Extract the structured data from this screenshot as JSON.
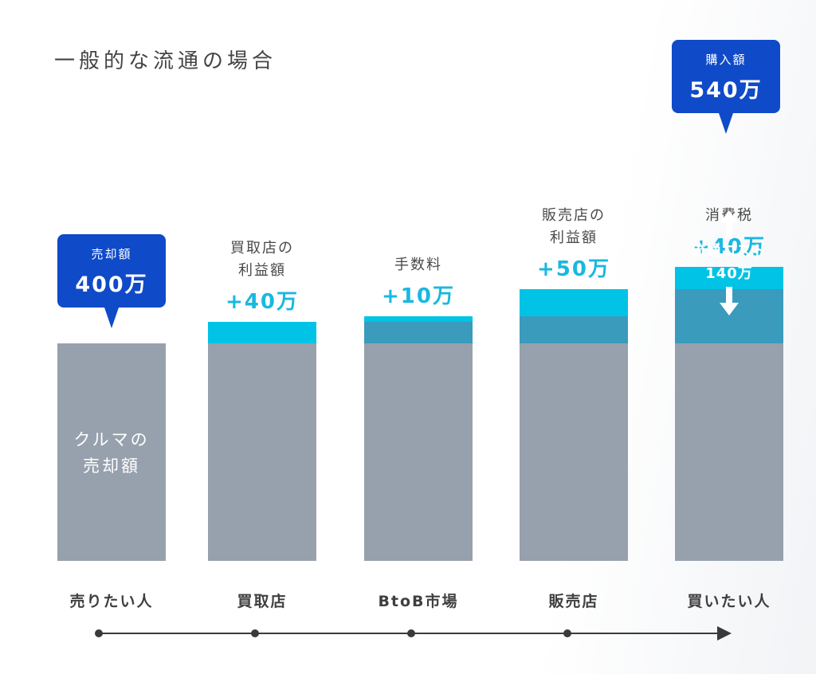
{
  "title": "一般的な流通の場合",
  "colors": {
    "base": "#97a1ad",
    "previous_additions": "#3a9bbc",
    "new_addition": "#00c3e6",
    "callout": "#0f4ac8",
    "addition_text": "#19b8e0"
  },
  "chart_data": {
    "type": "bar",
    "stacked": true,
    "categories": [
      "売りたい人",
      "買取店",
      "BtoB市場",
      "販売店",
      "買いたい人"
    ],
    "ylim": [
      0,
      540
    ],
    "unit": "万",
    "base_value": 400,
    "increments": [
      0,
      40,
      10,
      50,
      40
    ],
    "cumulative": [
      400,
      440,
      450,
      500,
      540
    ],
    "annotations": [
      {
        "label": "",
        "value": ""
      },
      {
        "label": "買取店の\n利益額",
        "value": "+40万"
      },
      {
        "label": "手数料",
        "value": "+10万"
      },
      {
        "label": "販売店の\n利益額",
        "value": "+50万"
      },
      {
        "label": "消費税",
        "value": "+40万"
      }
    ],
    "base_label": "クルマの\n売却額",
    "callouts": {
      "sell": {
        "label": "売却額",
        "value": "400万"
      },
      "buy": {
        "label": "購入額",
        "value": "540万"
      }
    },
    "cost": {
      "label": "流通コスト",
      "value": "140万"
    }
  }
}
